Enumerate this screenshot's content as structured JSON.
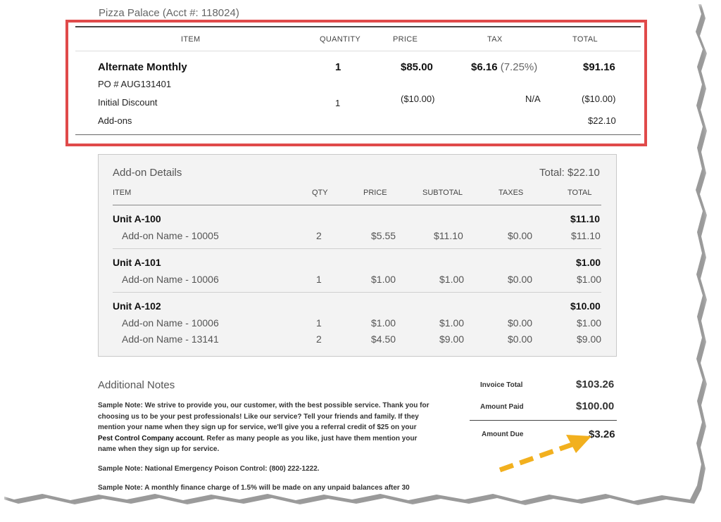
{
  "header": {
    "account": "Pizza Palace (Acct #: 118024)"
  },
  "invoice_table": {
    "columns": [
      "ITEM",
      "QUANTITY",
      "PRICE",
      "TAX",
      "TOTAL"
    ],
    "main_item": {
      "name": "Alternate Monthly",
      "quantity": "1",
      "price": "$85.00",
      "tax": "$6.16",
      "tax_rate": "(7.25%)",
      "total": "$91.16"
    },
    "po_number": "PO # AUG131401",
    "discount": {
      "name": "Initial Discount",
      "quantity": "1",
      "price": "($10.00)",
      "tax": "N/A",
      "total": "($10.00)"
    },
    "addons": {
      "name": "Add-ons",
      "total": "$22.10"
    }
  },
  "addon_details": {
    "title": "Add-on Details",
    "total": "Total: $22.10",
    "columns": [
      "ITEM",
      "QTY",
      "PRICE",
      "SUBTOTAL",
      "TAXES",
      "TOTAL"
    ],
    "units": [
      {
        "name": "Unit A-100",
        "total": "$11.10",
        "rows": [
          {
            "name": "Add-on Name - 10005",
            "qty": "2",
            "price": "$5.55",
            "subtotal": "$11.10",
            "taxes": "$0.00",
            "total": "$11.10"
          }
        ]
      },
      {
        "name": "Unit A-101",
        "total": "$1.00",
        "rows": [
          {
            "name": "Add-on Name - 10006",
            "qty": "1",
            "price": "$1.00",
            "subtotal": "$1.00",
            "taxes": "$0.00",
            "total": "$1.00"
          }
        ]
      },
      {
        "name": "Unit A-102",
        "total": "$10.00",
        "rows": [
          {
            "name": "Add-on Name - 10006",
            "qty": "1",
            "price": "$1.00",
            "subtotal": "$1.00",
            "taxes": "$0.00",
            "total": "$1.00"
          },
          {
            "name": "Add-on Name - 13141",
            "qty": "2",
            "price": "$4.50",
            "subtotal": "$9.00",
            "taxes": "$0.00",
            "total": "$9.00"
          }
        ]
      }
    ]
  },
  "notes": {
    "title": "Additional Notes",
    "note1_lines": [
      "Sample Note: We strive to provide you, our customer, with the best possible service. Thank you for",
      "choosing us to be your pest professionals! Like our service? Tell your friends and family. If they",
      "mention your name when they sign up for service, we'll give you a referral credit of $25 on your"
    ],
    "note1_bold": "Pest Control Company account",
    "note1_after": ". Refer as many people as you like, just have them mention your",
    "note1_last": "name when they sign up for service.",
    "note2": "Sample Note: National Emergency Poison Control: (800) 222-1222.",
    "note3": "Sample Note: A monthly finance charge of 1.5% will be made on any unpaid balances after 30"
  },
  "summary": {
    "invoice_total_label": "Invoice Total",
    "invoice_total": "$103.26",
    "amount_paid_label": "Amount Paid",
    "amount_paid": "$100.00",
    "amount_due_label": "Amount Due",
    "amount_due": "$3.26"
  },
  "colors": {
    "highlight": "#e04a4a",
    "arrow": "#f2b01e"
  }
}
